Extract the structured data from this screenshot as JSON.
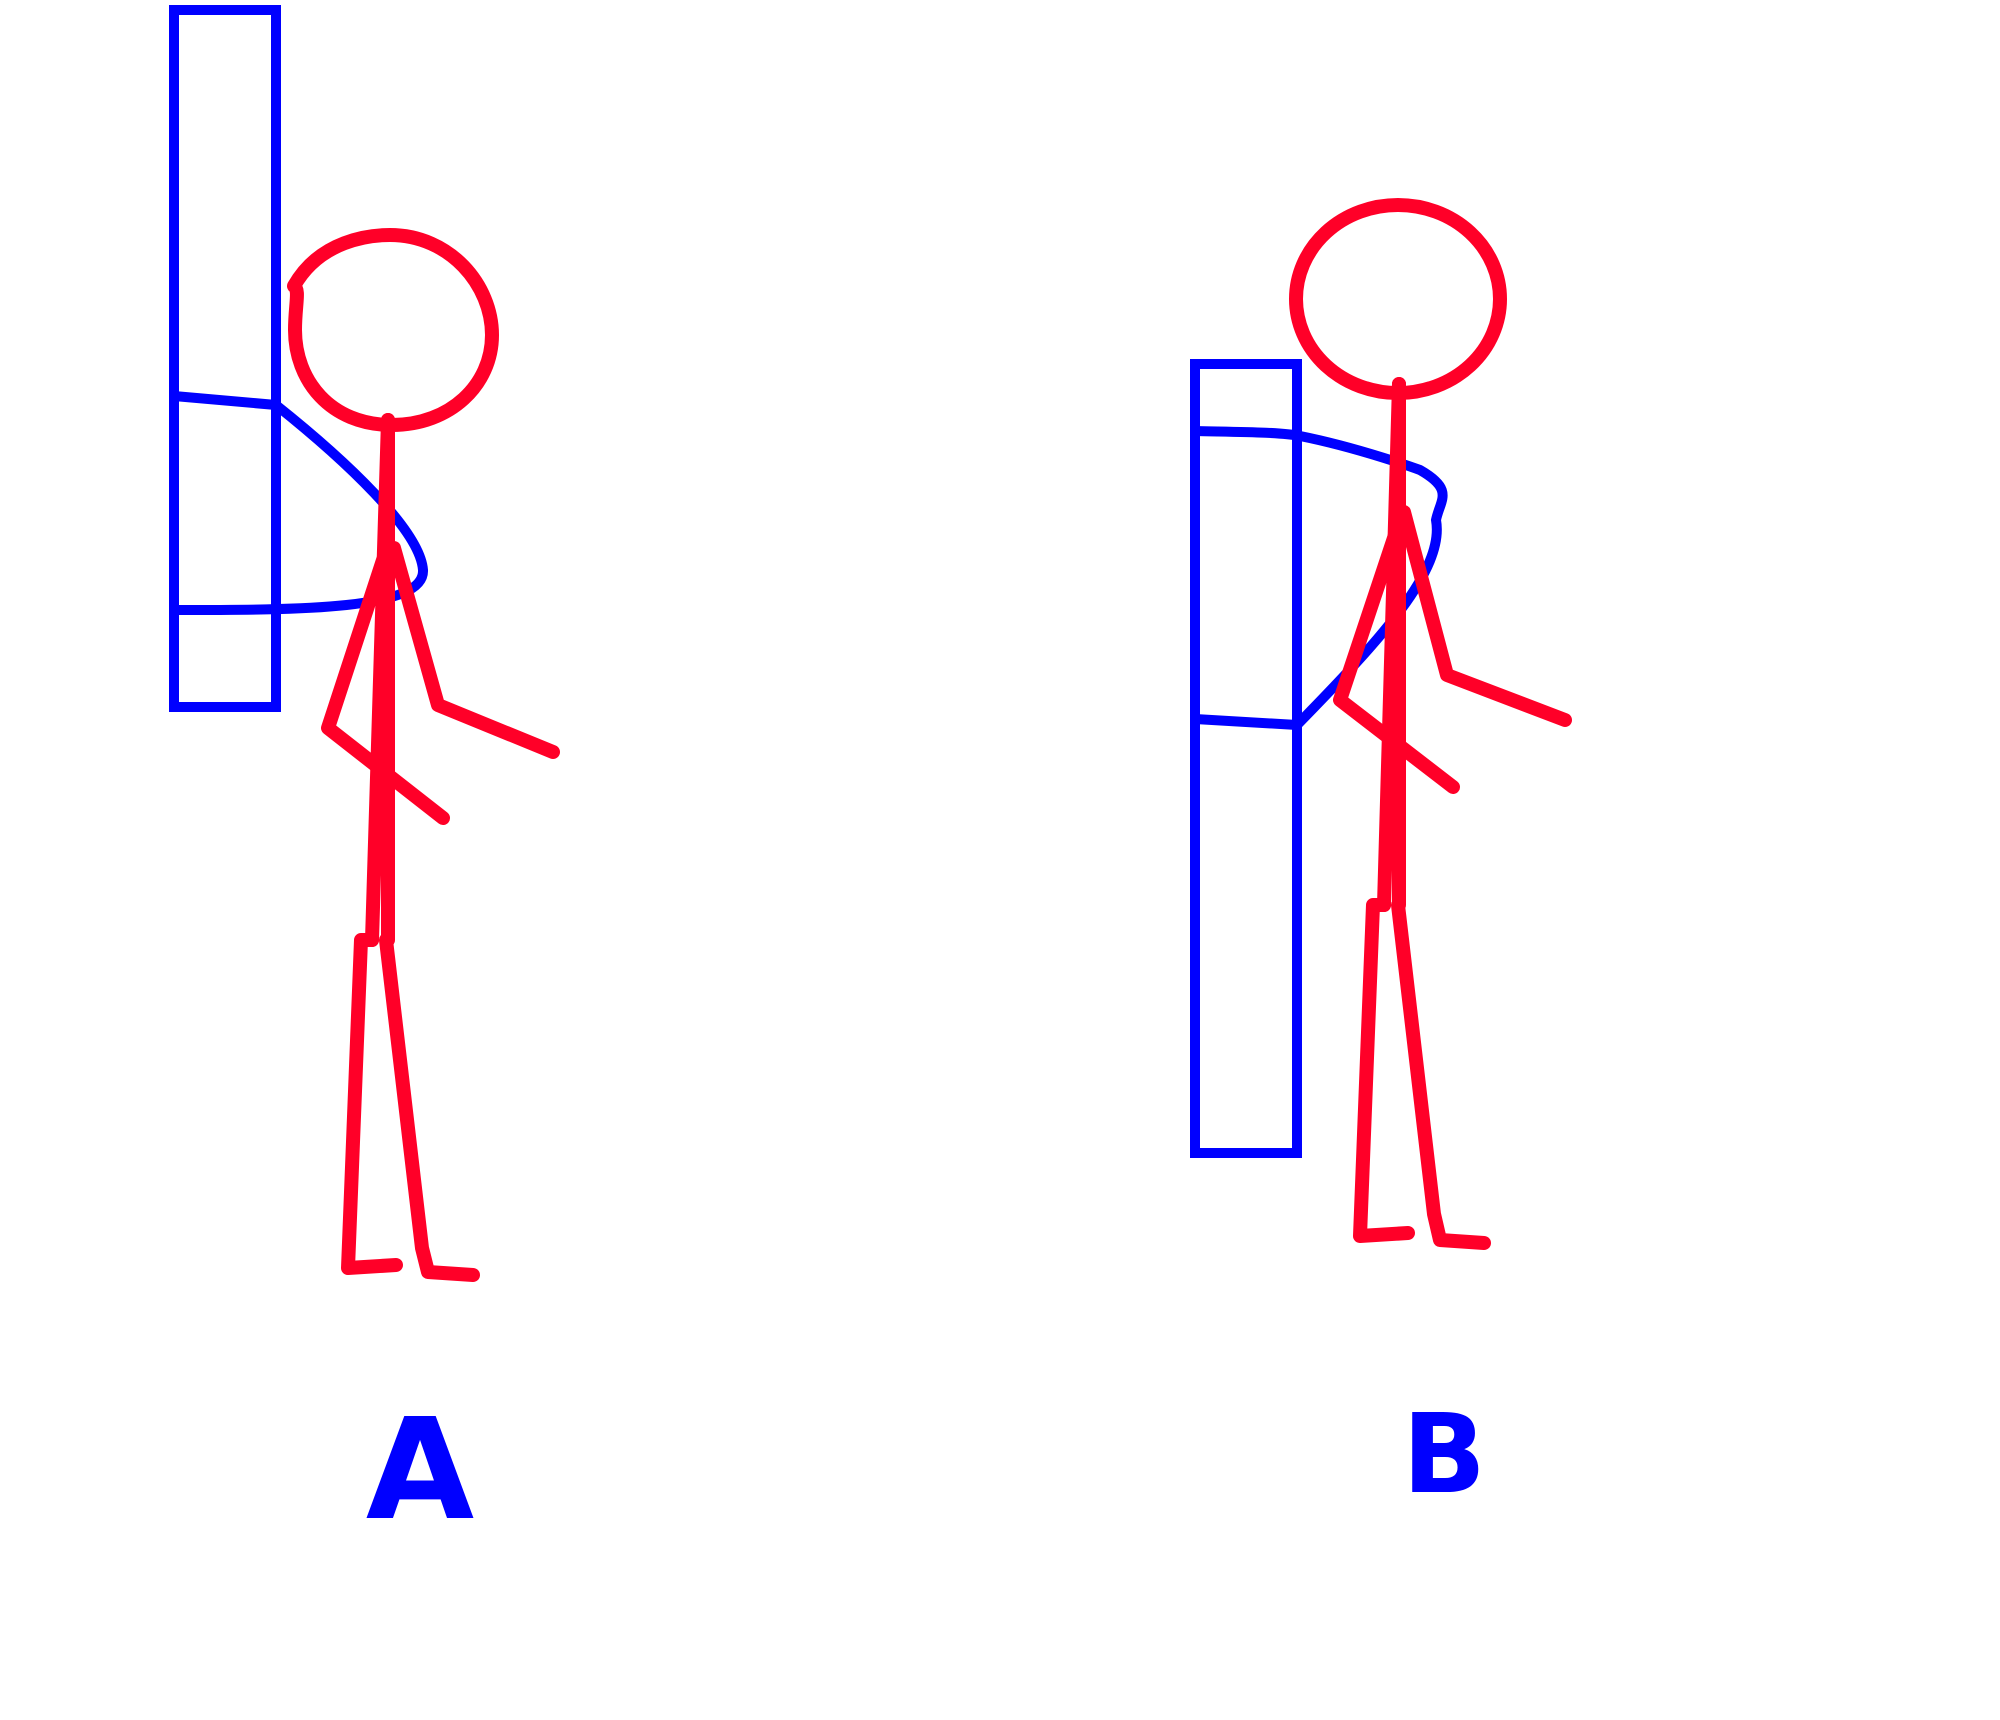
{
  "colors": {
    "figure": "#ff0028",
    "bag": "#0000ff",
    "label": "#0000ff",
    "background": "#ffffff"
  },
  "panels": [
    {
      "label": "A"
    },
    {
      "label": "B"
    }
  ]
}
